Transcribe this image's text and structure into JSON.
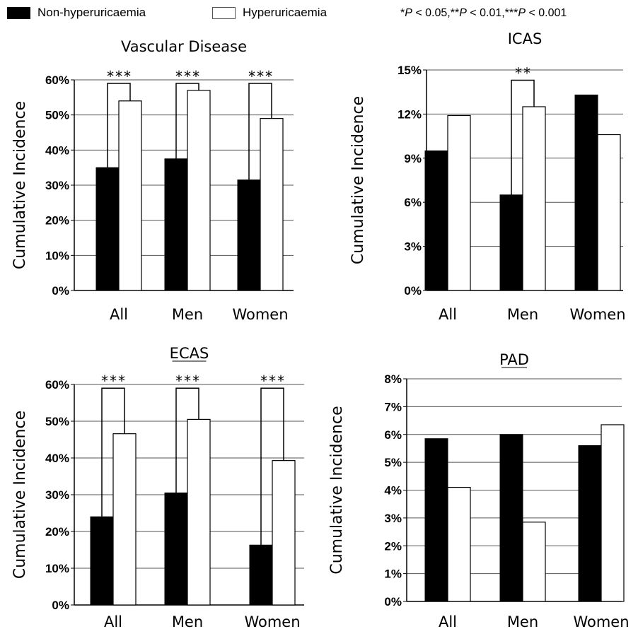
{
  "legend": {
    "items": [
      {
        "label": "Non-hyperuricaemia",
        "color": "#000000"
      },
      {
        "label": "Hyperuricaemia",
        "color": "#ffffff"
      }
    ]
  },
  "significance_note": {
    "p1": "P",
    "t1": " < 0.05,**",
    "p2": "P",
    "t2": " < 0.01,***",
    "p3": "P",
    "t3": " < 0.001",
    "lead": "*"
  },
  "chart_data": [
    {
      "type": "bar",
      "title": "Vascular Disease",
      "title_underlined": false,
      "ylabel": "Cumulative Incidence",
      "categories": [
        "All",
        "Men",
        "Women"
      ],
      "series": [
        {
          "name": "Non-hyperuricaemia",
          "color": "#000000",
          "values": [
            35,
            37.5,
            31.5
          ]
        },
        {
          "name": "Hyperuricaemia",
          "color": "#ffffff",
          "values": [
            54,
            57,
            49
          ]
        }
      ],
      "ylim": [
        0,
        60
      ],
      "yticks": [
        0,
        10,
        20,
        30,
        40,
        50,
        60
      ],
      "ytick_format": "{v}%",
      "significance": [
        "***",
        "***",
        "***"
      ],
      "bracket_top": 59,
      "grid": true
    },
    {
      "type": "bar",
      "title": "ICAS",
      "title_underlined": false,
      "ylabel": "Cumulative Incidence",
      "categories": [
        "All",
        "Men",
        "Women"
      ],
      "series": [
        {
          "name": "Non-hyperuricaemia",
          "color": "#000000",
          "values": [
            9.5,
            6.5,
            13.3
          ]
        },
        {
          "name": "Hyperuricaemia",
          "color": "#ffffff",
          "values": [
            11.9,
            12.5,
            10.6
          ]
        }
      ],
      "ylim": [
        0,
        15
      ],
      "yticks": [
        0,
        3,
        6,
        9,
        12,
        15
      ],
      "ytick_format": "{v}%",
      "significance": [
        "",
        "**",
        ""
      ],
      "bracket_top": 14.3,
      "grid": true
    },
    {
      "type": "bar",
      "title": "ECAS",
      "title_underlined": true,
      "ylabel": "Cumulative Incidence",
      "categories": [
        "All",
        "Men",
        "Women"
      ],
      "series": [
        {
          "name": "Non-hyperuricaemia",
          "color": "#000000",
          "values": [
            24,
            30.5,
            16.3
          ]
        },
        {
          "name": "Hyperuricaemia",
          "color": "#ffffff",
          "values": [
            46.6,
            50.5,
            39.3
          ]
        }
      ],
      "ylim": [
        0,
        60
      ],
      "yticks": [
        0,
        10,
        20,
        30,
        40,
        50,
        60
      ],
      "ytick_format": "{v}%",
      "significance": [
        "***",
        "***",
        "***"
      ],
      "bracket_top": 59,
      "grid": true
    },
    {
      "type": "bar",
      "title": "PAD",
      "title_underlined": true,
      "ylabel": "Cumulative Incidence",
      "categories": [
        "All",
        "Men",
        "Women"
      ],
      "series": [
        {
          "name": "Non-hyperuricaemia",
          "color": "#000000",
          "values": [
            5.85,
            6.0,
            5.6
          ]
        },
        {
          "name": "Hyperuricaemia",
          "color": "#ffffff",
          "values": [
            4.1,
            2.85,
            6.35
          ]
        }
      ],
      "ylim": [
        0,
        8
      ],
      "yticks": [
        0,
        1,
        2,
        3,
        4,
        5,
        6,
        7,
        8
      ],
      "ytick_format": "{v}%",
      "significance": [
        "",
        "",
        ""
      ],
      "bracket_top": null,
      "grid": true
    }
  ]
}
